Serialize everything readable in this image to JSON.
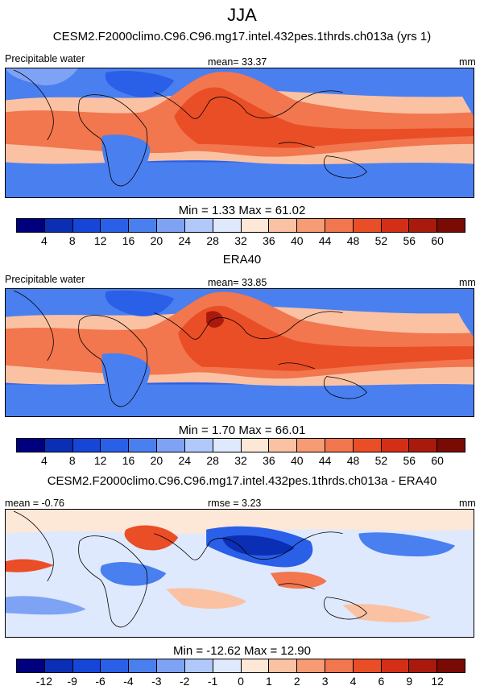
{
  "figure": {
    "season": "JJA",
    "panels": [
      {
        "title": "CESM2.F2000climo.C96.C96.mg17.intel.432pes.1thrds.ch013a (yrs 1)",
        "left_label": "Precipitable water",
        "center_label": "mean=  33.37",
        "units": "mm",
        "minmax": "Min =    1.33  Max =  61.02",
        "colorbar_ticks": [
          "4",
          "8",
          "12",
          "16",
          "20",
          "24",
          "28",
          "32",
          "36",
          "40",
          "44",
          "48",
          "52",
          "56",
          "60"
        ]
      },
      {
        "title": "ERA40",
        "left_label": "Precipitable water",
        "center_label": "mean=  33.85",
        "units": "mm",
        "minmax": "Min =    1.70  Max =  66.01",
        "colorbar_ticks": [
          "4",
          "8",
          "12",
          "16",
          "20",
          "24",
          "28",
          "32",
          "36",
          "40",
          "44",
          "48",
          "52",
          "56",
          "60"
        ]
      },
      {
        "title": "CESM2.F2000climo.C96.C96.mg17.intel.432pes.1thrds.ch013a - ERA40",
        "left_label": "mean =  -0.76",
        "center_label": "rmse =   3.23",
        "units": "mm",
        "minmax": "Min = -12.62  Max =  12.90",
        "colorbar_ticks": [
          "-12",
          "-9",
          "-6",
          "-4",
          "-3",
          "-2",
          "-1",
          "0",
          "1",
          "2",
          "3",
          "4",
          "6",
          "9",
          "12"
        ]
      }
    ]
  },
  "colors": {
    "absolute": [
      "#00007f",
      "#0a2fb5",
      "#1546d8",
      "#2a5fe8",
      "#4a7ff0",
      "#7ea3f5",
      "#b0c9fa",
      "#dfe9fd",
      "#fde7d6",
      "#fac2a3",
      "#f79b74",
      "#f2764e",
      "#ea4e26",
      "#d42e16",
      "#a91a0c",
      "#7a0a04"
    ],
    "land_outline": "#000000"
  }
}
